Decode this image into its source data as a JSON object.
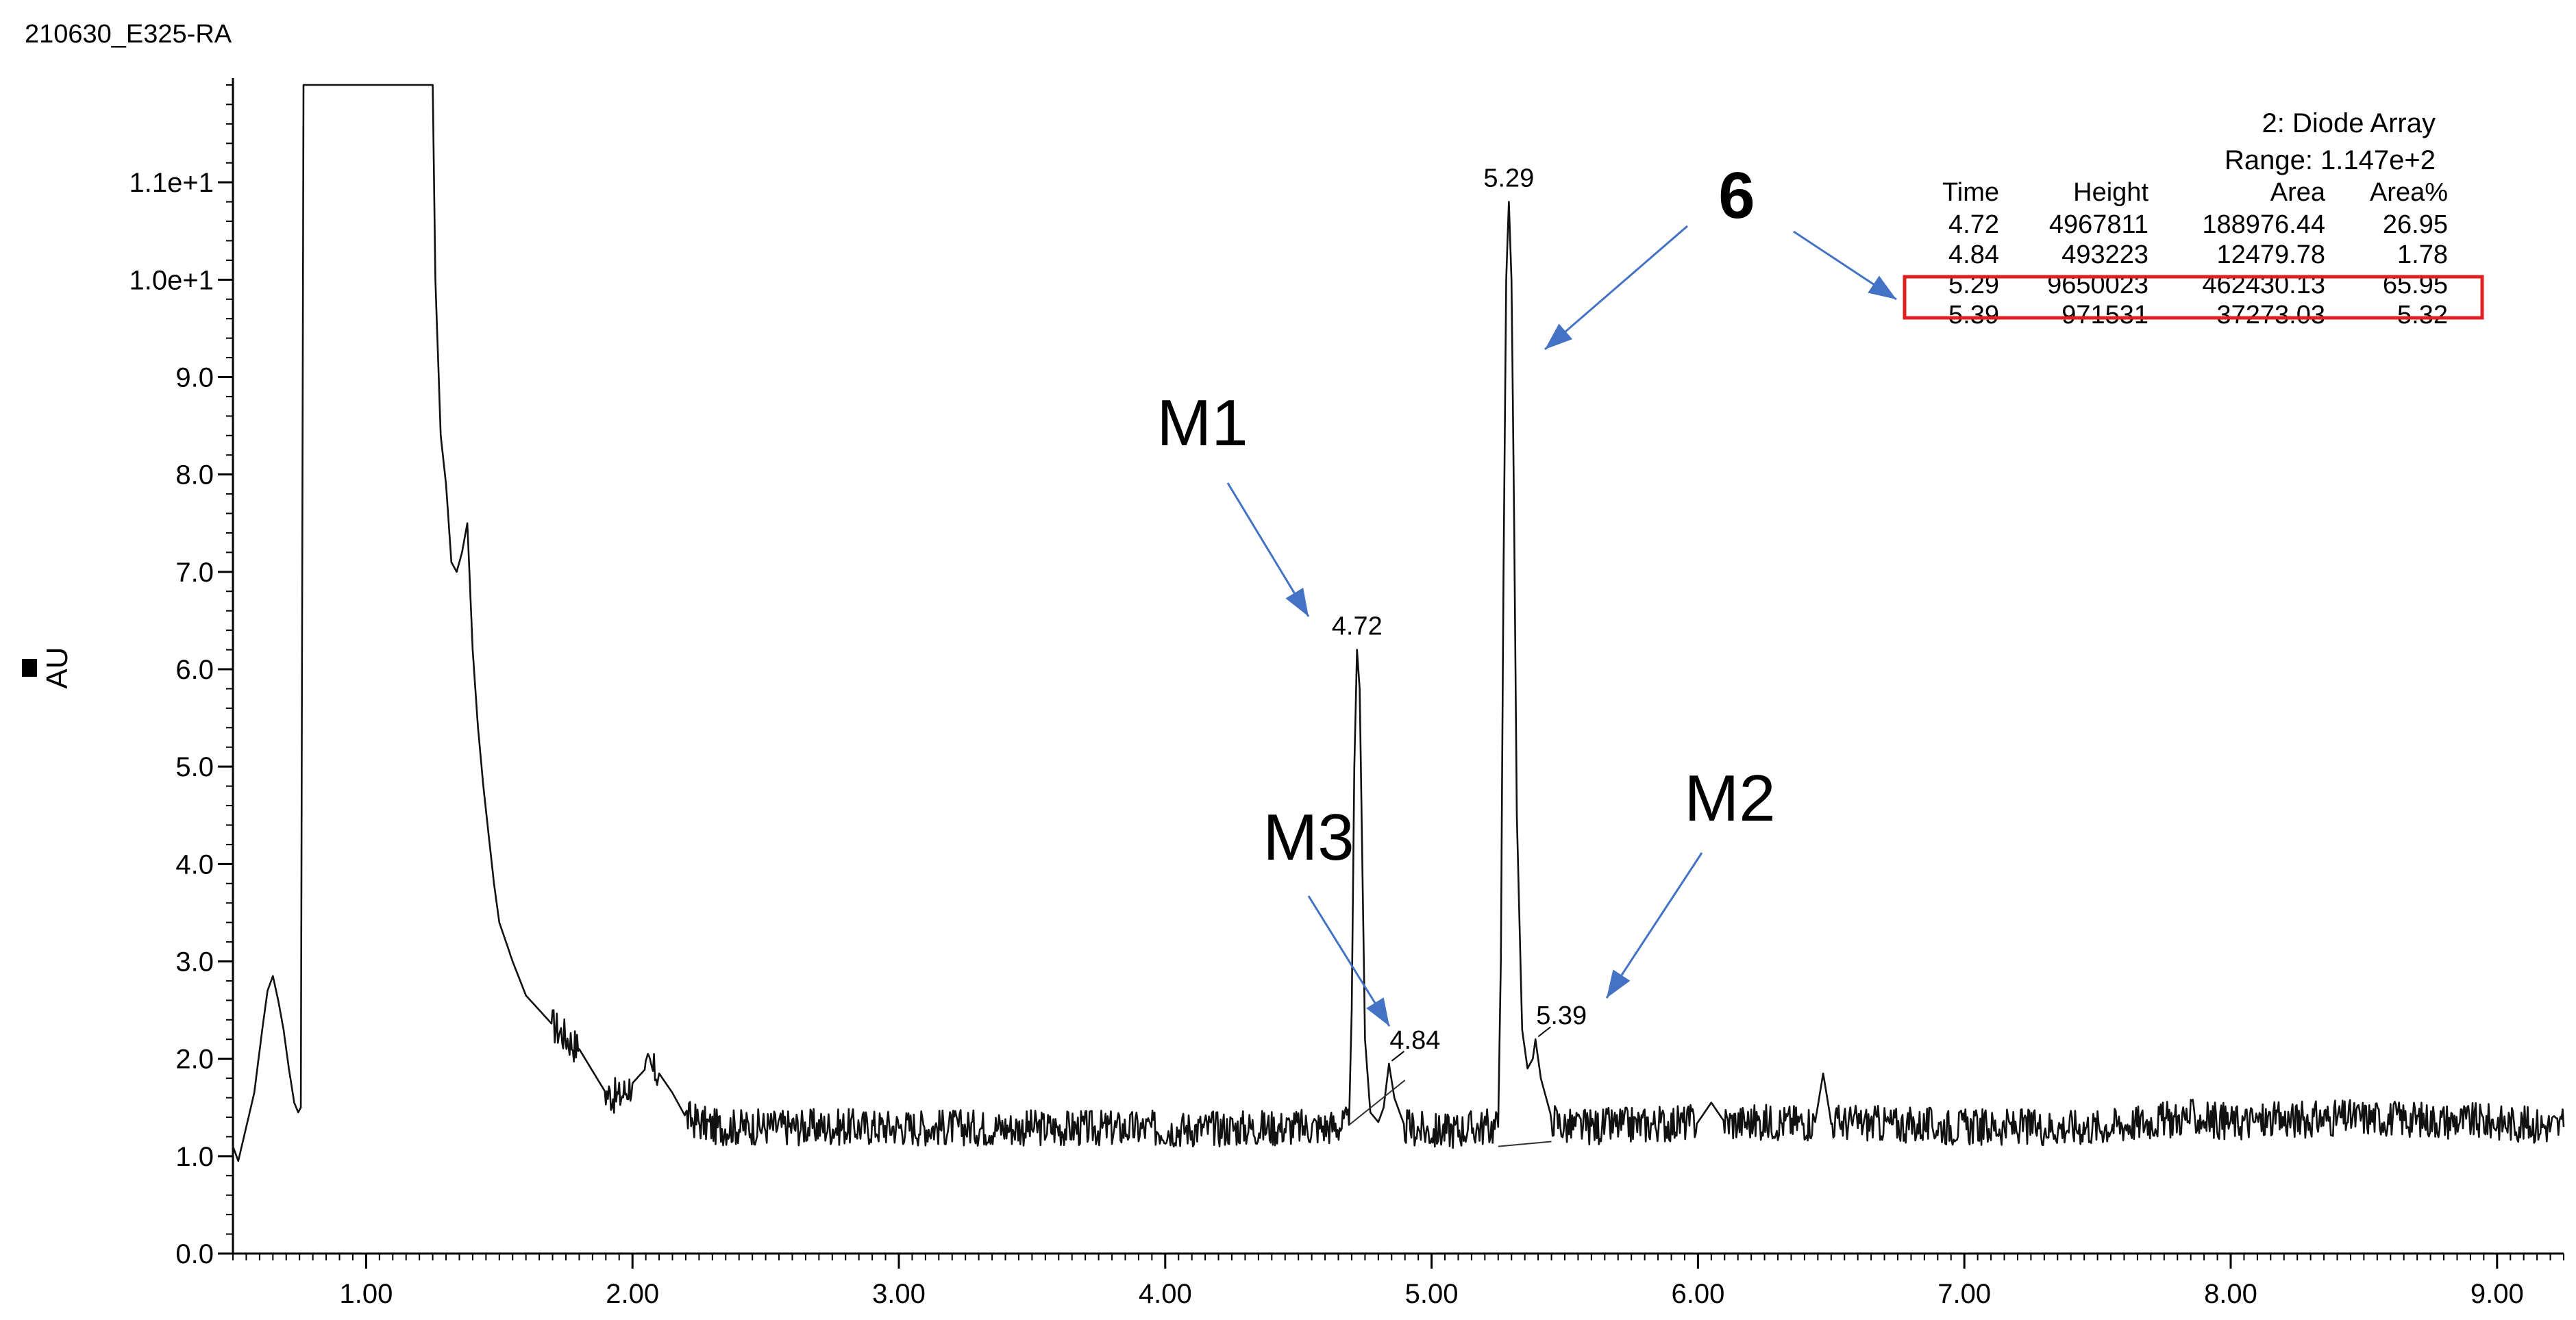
{
  "chart_data": {
    "type": "line",
    "title": "210630_E325-RA",
    "ylabel": "AU",
    "xlim": [
      0.5,
      9.25
    ],
    "ylim": [
      0.0,
      12.0
    ],
    "x_ticks": [
      "1.00",
      "2.00",
      "3.00",
      "4.00",
      "5.00",
      "6.00",
      "7.00",
      "8.00",
      "9.00"
    ],
    "y_ticks": [
      "0.0",
      "1.0",
      "2.0",
      "3.0",
      "4.0",
      "5.0",
      "6.0",
      "7.0",
      "8.0",
      "9.0",
      "1.0e+1",
      "1.1e+1"
    ],
    "detector": "2: Diode Array",
    "range": "Range: 1.147e+2",
    "peak_table": {
      "headers": [
        "Time",
        "Height",
        "Area",
        "Area%"
      ],
      "rows": [
        [
          "4.72",
          "4967811",
          "188976.44",
          "26.95"
        ],
        [
          "4.84",
          "493223",
          "12479.78",
          "1.78"
        ],
        [
          "5.29",
          "9650023",
          "462430.13",
          "65.95"
        ],
        [
          "5.39",
          "971531",
          "37273.03",
          "5.32"
        ]
      ],
      "highlight_row": 2,
      "highlight_color": "#e02020"
    },
    "peaks": [
      {
        "time": "4.72",
        "x": 4.72,
        "y": 6.2
      },
      {
        "time": "4.84",
        "x": 4.84,
        "y": 1.95
      },
      {
        "time": "5.29",
        "x": 5.29,
        "y": 10.8
      },
      {
        "time": "5.39",
        "x": 5.39,
        "y": 2.2
      }
    ],
    "trace_points": [
      [
        0.5,
        1.1
      ],
      [
        0.52,
        0.95
      ],
      [
        0.55,
        1.3
      ],
      [
        0.58,
        1.65
      ],
      [
        0.61,
        2.3
      ],
      [
        0.63,
        2.7
      ],
      [
        0.65,
        2.85
      ],
      [
        0.67,
        2.6
      ],
      [
        0.69,
        2.3
      ],
      [
        0.71,
        1.9
      ],
      [
        0.73,
        1.55
      ],
      [
        0.745,
        1.45
      ],
      [
        0.755,
        1.5
      ],
      [
        0.765,
        12.0
      ],
      [
        1.25,
        12.0
      ],
      [
        1.26,
        10.0
      ],
      [
        1.28,
        8.4
      ],
      [
        1.3,
        7.9
      ],
      [
        1.32,
        7.1
      ],
      [
        1.34,
        7.0
      ],
      [
        1.36,
        7.2
      ],
      [
        1.38,
        7.5
      ],
      [
        1.4,
        6.2
      ],
      [
        1.42,
        5.4
      ],
      [
        1.44,
        4.8
      ],
      [
        1.46,
        4.3
      ],
      [
        1.48,
        3.8
      ],
      [
        1.5,
        3.4
      ],
      [
        1.55,
        3.0
      ],
      [
        1.6,
        2.65
      ],
      [
        1.7,
        2.35
      ],
      [
        1.8,
        2.1
      ],
      [
        1.9,
        1.65
      ],
      [
        1.95,
        1.6
      ],
      [
        2.0,
        1.75
      ],
      [
        2.05,
        1.9
      ],
      [
        2.1,
        1.85
      ],
      [
        2.15,
        1.65
      ],
      [
        2.2,
        1.4
      ],
      [
        2.3,
        1.3
      ],
      [
        2.5,
        1.3
      ],
      [
        3.0,
        1.3
      ],
      [
        4.0,
        1.28
      ],
      [
        4.6,
        1.3
      ],
      [
        4.69,
        1.32
      ],
      [
        4.7,
        2.5
      ],
      [
        4.71,
        5.0
      ],
      [
        4.72,
        6.2
      ],
      [
        4.73,
        5.8
      ],
      [
        4.74,
        4.0
      ],
      [
        4.75,
        2.2
      ],
      [
        4.77,
        1.45
      ],
      [
        4.8,
        1.35
      ],
      [
        4.82,
        1.5
      ],
      [
        4.84,
        1.95
      ],
      [
        4.86,
        1.6
      ],
      [
        4.9,
        1.3
      ],
      [
        5.0,
        1.25
      ],
      [
        5.2,
        1.3
      ],
      [
        5.25,
        1.3
      ],
      [
        5.26,
        3.0
      ],
      [
        5.27,
        7.0
      ],
      [
        5.28,
        10.0
      ],
      [
        5.29,
        10.8
      ],
      [
        5.3,
        10.0
      ],
      [
        5.31,
        7.5
      ],
      [
        5.32,
        4.5
      ],
      [
        5.34,
        2.3
      ],
      [
        5.36,
        1.9
      ],
      [
        5.38,
        2.0
      ],
      [
        5.39,
        2.2
      ],
      [
        5.41,
        1.8
      ],
      [
        5.45,
        1.4
      ],
      [
        5.5,
        1.3
      ],
      [
        5.6,
        1.3
      ],
      [
        6.0,
        1.35
      ],
      [
        6.05,
        1.55
      ],
      [
        6.1,
        1.35
      ],
      [
        6.44,
        1.35
      ],
      [
        6.47,
        1.85
      ],
      [
        6.5,
        1.35
      ],
      [
        7.0,
        1.3
      ],
      [
        7.5,
        1.3
      ],
      [
        7.85,
        1.4
      ],
      [
        8.0,
        1.35
      ],
      [
        8.5,
        1.4
      ],
      [
        9.0,
        1.35
      ],
      [
        9.25,
        1.3
      ]
    ]
  },
  "annotations": {
    "label_6": "6",
    "label_m1": "M1",
    "label_m2": "M2",
    "label_m3": "M3",
    "arrow_color": "#4472c4"
  }
}
